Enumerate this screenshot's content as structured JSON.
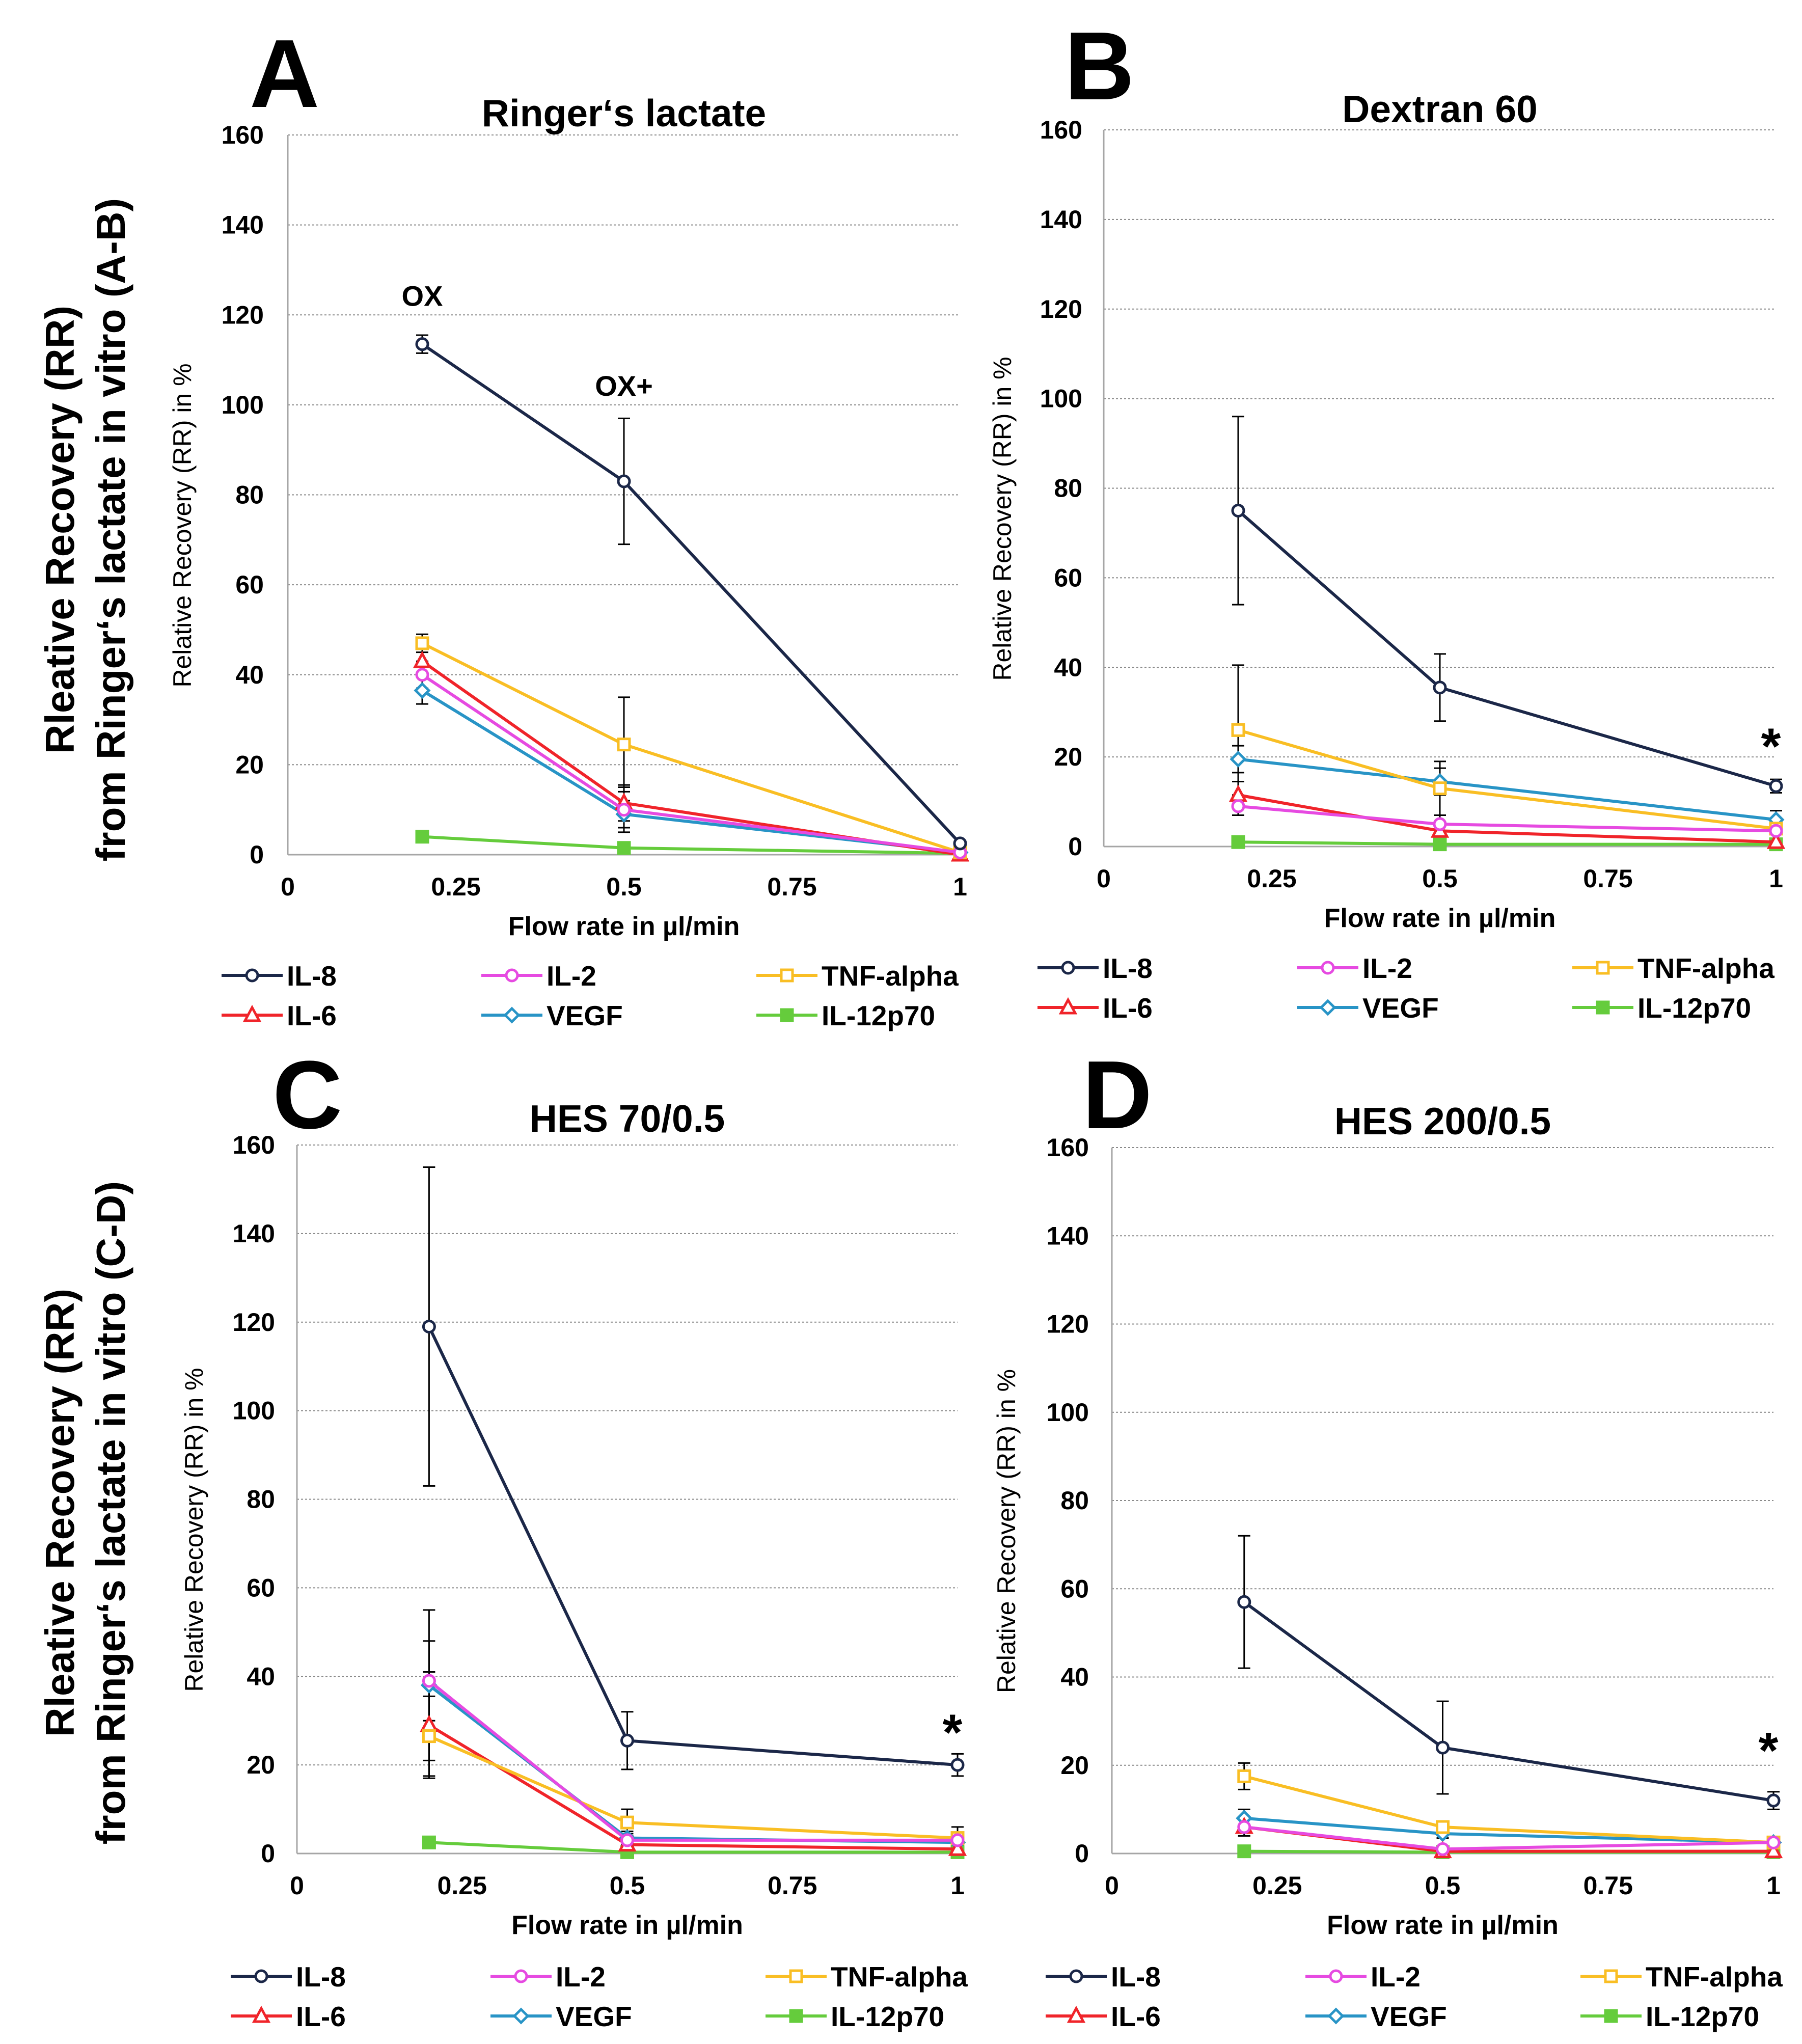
{
  "chart_data": [
    {
      "type": "line",
      "panel": "A",
      "title": "Ringer‘s lactate",
      "xlabel": "Flow rate in µl/min",
      "ylabel": "Relative Recovery (RR) in %",
      "xlim": [
        0,
        1
      ],
      "ylim": [
        0,
        160
      ],
      "xticks": [
        "0",
        "0.25",
        "0.5",
        "0.75",
        "1"
      ],
      "yticks": [
        "0",
        "20",
        "40",
        "60",
        "80",
        "100",
        "120",
        "140",
        "160"
      ],
      "x": [
        0.2,
        0.5,
        1
      ],
      "series": [
        {
          "name": "IL-8",
          "values": [
            113.5,
            83,
            2.5
          ],
          "errors": [
            2,
            14,
            0.5
          ]
        },
        {
          "name": "IL-2",
          "values": [
            40,
            10,
            0.5
          ],
          "errors": [
            3,
            5,
            0.3
          ]
        },
        {
          "name": "TNF-alpha",
          "values": [
            47,
            24.5,
            0.5
          ],
          "errors": [
            2,
            10.5,
            0.3
          ]
        },
        {
          "name": "IL-6",
          "values": [
            43,
            11.5,
            0
          ],
          "errors": [
            3,
            4,
            0.3
          ]
        },
        {
          "name": "VEGF",
          "values": [
            36.5,
            9,
            0.5
          ],
          "errors": [
            3,
            3,
            0.3
          ]
        },
        {
          "name": "IL-12p70",
          "values": [
            4,
            1.5,
            0.3
          ],
          "errors": [
            0,
            0,
            0
          ]
        }
      ],
      "annotations": [
        {
          "text": "OX",
          "x": 0.2,
          "y": 122
        },
        {
          "text": "OX+",
          "x": 0.5,
          "y": 102
        }
      ]
    },
    {
      "type": "line",
      "panel": "B",
      "title": "Dextran 60",
      "xlabel": "Flow rate in µl/min",
      "ylabel": "Relative Recovery (RR) in %",
      "xlim": [
        0,
        1
      ],
      "ylim": [
        0,
        160
      ],
      "xticks": [
        "0",
        "0.25",
        "0.5",
        "0.75",
        "1"
      ],
      "yticks": [
        "0",
        "20",
        "40",
        "60",
        "80",
        "100",
        "120",
        "140",
        "160"
      ],
      "x": [
        0.2,
        0.5,
        1
      ],
      "series": [
        {
          "name": "IL-8",
          "values": [
            75,
            35.5,
            13.5
          ],
          "errors": [
            21,
            7.5,
            1.5
          ]
        },
        {
          "name": "IL-2",
          "values": [
            9,
            5,
            3.5
          ],
          "errors": [
            2,
            2,
            0.5
          ]
        },
        {
          "name": "TNF-alpha",
          "values": [
            26,
            13,
            4
          ],
          "errors": [
            14.5,
            6,
            1
          ]
        },
        {
          "name": "IL-6",
          "values": [
            11.5,
            3.5,
            1
          ],
          "errors": [
            3,
            1.5,
            0.3
          ]
        },
        {
          "name": "VEGF",
          "values": [
            19.5,
            14.5,
            6
          ],
          "errors": [
            3,
            3,
            2
          ]
        },
        {
          "name": "IL-12p70",
          "values": [
            1,
            0.5,
            0.5
          ],
          "errors": [
            0,
            0,
            0
          ]
        }
      ],
      "annotations": [
        {
          "text": "*",
          "x": 1,
          "y": 23
        }
      ]
    },
    {
      "type": "line",
      "panel": "C",
      "title": "HES 70/0.5",
      "xlabel": "Flow rate in µl/min",
      "ylabel": "Relative Recovery (RR) in %",
      "xlim": [
        0,
        1
      ],
      "ylim": [
        0,
        160
      ],
      "xticks": [
        "0",
        "0.25",
        "0.5",
        "0.75",
        "1"
      ],
      "yticks": [
        "0",
        "20",
        "40",
        "60",
        "80",
        "100",
        "120",
        "140",
        "160"
      ],
      "x": [
        0.2,
        0.5,
        1
      ],
      "series": [
        {
          "name": "IL-8",
          "values": [
            119,
            25.5,
            20
          ],
          "errors": [
            36,
            6.5,
            2.5
          ]
        },
        {
          "name": "IL-2",
          "values": [
            39,
            3,
            3
          ],
          "errors": [
            9,
            1.5,
            1
          ]
        },
        {
          "name": "TNF-alpha",
          "values": [
            26.5,
            7,
            3.5
          ],
          "errors": [
            9,
            3,
            2.5
          ]
        },
        {
          "name": "IL-6",
          "values": [
            29,
            2,
            1
          ],
          "errors": [
            12,
            1,
            0.5
          ]
        },
        {
          "name": "VEGF",
          "values": [
            38,
            3.5,
            2.5
          ],
          "errors": [
            17,
            1.5,
            1
          ]
        },
        {
          "name": "IL-12p70",
          "values": [
            2.5,
            0.3,
            0.3
          ],
          "errors": [
            0,
            0,
            0
          ]
        }
      ],
      "annotations": [
        {
          "text": "*",
          "x": 1,
          "y": 28
        }
      ]
    },
    {
      "type": "line",
      "panel": "D",
      "title": "HES 200/0.5",
      "xlabel": "Flow rate in µl/min",
      "ylabel": "Relative Recovery (RR) in %",
      "xlim": [
        0,
        1
      ],
      "ylim": [
        0,
        160
      ],
      "xticks": [
        "0",
        "0.25",
        "0.5",
        "0.75",
        "1"
      ],
      "yticks": [
        "0",
        "20",
        "40",
        "60",
        "80",
        "100",
        "120",
        "140",
        "160"
      ],
      "x": [
        0.2,
        0.5,
        1
      ],
      "series": [
        {
          "name": "IL-8",
          "values": [
            57,
            24,
            12
          ],
          "errors": [
            15,
            10.5,
            2
          ]
        },
        {
          "name": "IL-2",
          "values": [
            6,
            1,
            2.5
          ],
          "errors": [
            2,
            0.5,
            0.5
          ]
        },
        {
          "name": "TNF-alpha",
          "values": [
            17.5,
            6,
            2.5
          ],
          "errors": [
            3,
            1,
            0.5
          ]
        },
        {
          "name": "IL-6",
          "values": [
            6,
            0.5,
            0.5
          ],
          "errors": [
            2,
            0.3,
            0.3
          ]
        },
        {
          "name": "VEGF",
          "values": [
            8,
            4.5,
            2.5
          ],
          "errors": [
            2,
            1,
            0.5
          ]
        },
        {
          "name": "IL-12p70",
          "values": [
            0.5,
            0.3,
            0.3
          ],
          "errors": [
            0,
            0,
            0
          ]
        }
      ],
      "annotations": [
        {
          "text": "*",
          "x": 1,
          "y": 24
        }
      ]
    }
  ],
  "series_styles": [
    {
      "name": "IL-8",
      "color": "#1b2748",
      "marker": "circle",
      "filled": false
    },
    {
      "name": "IL-2",
      "color": "#e64ae1",
      "marker": "circle",
      "filled": false
    },
    {
      "name": "TNF-alpha",
      "color": "#f9be24",
      "marker": "square",
      "filled": false
    },
    {
      "name": "IL-6",
      "color": "#f0242a",
      "marker": "triangle",
      "filled": false
    },
    {
      "name": "VEGF",
      "color": "#2894c6",
      "marker": "diamond",
      "filled": false
    },
    {
      "name": "IL-12p70",
      "color": "#65cc3c",
      "marker": "square",
      "filled": true
    }
  ],
  "legend": [
    "IL-8",
    "IL-2",
    "TNF-alpha",
    "IL-6",
    "VEGF",
    "IL-12p70"
  ],
  "side_labels": {
    "top": [
      "Rleative Recovery (RR)",
      "from Ringer‘s lactate in vitro (A-B)"
    ],
    "bottom": [
      "Rleative Recovery (RR)",
      "from Ringer‘s lactate in vitro (C-D)"
    ]
  }
}
